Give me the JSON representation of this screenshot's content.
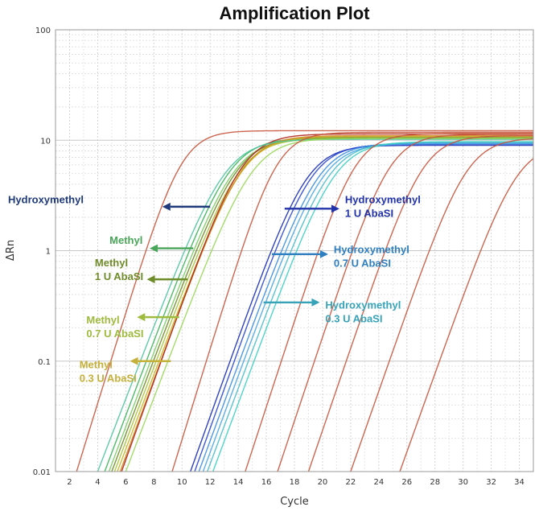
{
  "chart_data": {
    "type": "line",
    "title": "Amplification Plot",
    "xlabel": "Cycle",
    "ylabel": "ΔRn",
    "xlim": [
      1,
      35
    ],
    "ylim": [
      0.01,
      100
    ],
    "yscale": "log",
    "grid": true,
    "x_ticks": [
      2,
      4,
      6,
      8,
      10,
      12,
      14,
      16,
      18,
      20,
      22,
      24,
      26,
      28,
      30,
      32,
      34
    ],
    "y_ticks": [
      {
        "value": 0.01,
        "label": "0.01"
      },
      {
        "value": 0.1,
        "label": "0.1"
      },
      {
        "value": 1,
        "label": "1"
      },
      {
        "value": 10,
        "label": "10"
      },
      {
        "value": 100,
        "label": "100"
      }
    ],
    "series": [
      {
        "name": "Hydroxymethyl",
        "color": "#c8553d",
        "plateau": 12.2,
        "slope": 0.95,
        "x_at_0_01": 2.5
      },
      {
        "name": "Methyl",
        "color": "#3cb55a",
        "plateau": 10.5,
        "slope": 0.78,
        "x_at_0_01": 4.5
      },
      {
        "name": "Methyl",
        "color": "#7ccd66",
        "plateau": 10.3,
        "slope": 0.78,
        "x_at_0_01": 4.8
      },
      {
        "name": "Methyl 1 U AbaSI",
        "color": "#6f8c2a",
        "plateau": 10.6,
        "slope": 0.78,
        "x_at_0_01": 5.0
      },
      {
        "name": "Methyl 0.7 U AbaSI",
        "color": "#a6c43a",
        "plateau": 10.4,
        "slope": 0.78,
        "x_at_0_01": 5.2
      },
      {
        "name": "Methyl 0.3 U AbaSI",
        "color": "#c9b628",
        "plateau": 10.8,
        "slope": 0.78,
        "x_at_0_01": 5.4
      },
      {
        "name": "Methyl 0.3 U AbaSI",
        "color": "#d08a1e",
        "plateau": 11.0,
        "slope": 0.8,
        "x_at_0_01": 5.6
      },
      {
        "name": "Methyl",
        "color": "#b02418",
        "plateau": 11.4,
        "slope": 0.82,
        "x_at_0_01": 5.7
      },
      {
        "name": "Methyl",
        "color": "#4fc4a0",
        "plateau": 10.2,
        "slope": 0.76,
        "x_at_0_01": 4.0
      },
      {
        "name": "Methyl",
        "color": "#9ad85a",
        "plateau": 10.4,
        "slope": 0.77,
        "x_at_0_01": 6.0
      },
      {
        "name": "Hydroxymethyl",
        "color": "#c8553d",
        "plateau": 11.8,
        "slope": 0.95,
        "x_at_0_01": 9.3
      },
      {
        "name": "Hydroxymethyl 1 U AbaSI",
        "color": "#1a2fb8",
        "plateau": 9.0,
        "slope": 0.82,
        "x_at_0_01": 10.6
      },
      {
        "name": "Hydroxymethyl 1 U AbaSI",
        "color": "#2a48d0",
        "plateau": 9.2,
        "slope": 0.82,
        "x_at_0_01": 10.9
      },
      {
        "name": "Hydroxymethyl 0.7 U AbaSI",
        "color": "#3a8ee0",
        "plateau": 9.4,
        "slope": 0.8,
        "x_at_0_01": 11.2
      },
      {
        "name": "Hydroxymethyl 0.7 U AbaSI",
        "color": "#4aa6e4",
        "plateau": 9.3,
        "slope": 0.8,
        "x_at_0_01": 11.5
      },
      {
        "name": "Hydroxymethyl 0.3 U AbaSI",
        "color": "#48bcc8",
        "plateau": 9.6,
        "slope": 0.79,
        "x_at_0_01": 11.8
      },
      {
        "name": "Hydroxymethyl 0.3 U AbaSI",
        "color": "#3ccfc2",
        "plateau": 9.7,
        "slope": 0.79,
        "x_at_0_01": 12.2
      },
      {
        "name": "Hydroxymethyl",
        "color": "#c8553d",
        "plateau": 11.5,
        "slope": 0.9,
        "x_at_0_01": 14.5
      },
      {
        "name": "Hydroxymethyl",
        "color": "#c8553d",
        "plateau": 11.3,
        "slope": 0.88,
        "x_at_0_01": 16.8
      },
      {
        "name": "Hydroxymethyl",
        "color": "#c8553d",
        "plateau": 11.0,
        "slope": 0.86,
        "x_at_0_01": 19.0
      },
      {
        "name": "Hydroxymethyl",
        "color": "#c8553d",
        "plateau": 10.5,
        "slope": 0.84,
        "x_at_0_01": 22.0
      },
      {
        "name": "Hydroxymethyl",
        "color": "#c8553d",
        "plateau": 9.5,
        "slope": 0.82,
        "x_at_0_01": 25.5
      }
    ],
    "annotations": [
      {
        "name": "hydroxymethyl-annotation",
        "lines": [
          "Hydroxymethyl"
        ],
        "color": "#1f3a7a",
        "align": "end",
        "text_anchor": [
          3,
          2.7
        ],
        "arrow": {
          "x1": 12.0,
          "y1": 2.5,
          "x2": 8.6,
          "y2": 2.5
        }
      },
      {
        "name": "methyl-annotation",
        "lines": [
          "Methyl"
        ],
        "color": "#49a559",
        "align": "end",
        "text_anchor": [
          7.2,
          1.15
        ],
        "arrow": {
          "x1": 10.8,
          "y1": 1.05,
          "x2": 7.7,
          "y2": 1.05
        }
      },
      {
        "name": "methyl-1u-abasi-annotation",
        "lines": [
          "Methyl",
          "1 U AbaSI"
        ],
        "color": "#6f8c2a",
        "align": "start",
        "text_anchor": [
          3.8,
          0.72
        ],
        "arrow": {
          "x1": 10.4,
          "y1": 0.55,
          "x2": 7.5,
          "y2": 0.55
        }
      },
      {
        "name": "methyl-07u-abasi-annotation",
        "lines": [
          "Methyl",
          "0.7 U AbaSI"
        ],
        "color": "#9ebb3f",
        "align": "start",
        "text_anchor": [
          3.2,
          0.22
        ],
        "arrow": {
          "x1": 9.8,
          "y1": 0.25,
          "x2": 6.8,
          "y2": 0.25
        }
      },
      {
        "name": "methyl-03u-abasi-annotation",
        "lines": [
          "Methyl",
          "0.3 U AbaSI"
        ],
        "color": "#c4b03a",
        "align": "start",
        "text_anchor": [
          2.7,
          0.086
        ],
        "arrow": {
          "x1": 9.2,
          "y1": 0.1,
          "x2": 6.3,
          "y2": 0.1
        }
      },
      {
        "name": "hydroxymethyl-1u-abasi-annotation",
        "lines": [
          "Hydroxymethyl",
          "1 U AbaSI"
        ],
        "color": "#2233aa",
        "align": "start",
        "text_anchor": [
          21.6,
          2.7
        ],
        "arrow": {
          "x1": 17.3,
          "y1": 2.4,
          "x2": 21.2,
          "y2": 2.4
        }
      },
      {
        "name": "hydroxymethyl-07u-abasi-annotation",
        "lines": [
          "Hydroxymethyl",
          "0.7 U AbaSI"
        ],
        "color": "#2f7fc0",
        "align": "start",
        "text_anchor": [
          20.8,
          0.95
        ],
        "arrow": {
          "x1": 16.4,
          "y1": 0.93,
          "x2": 20.4,
          "y2": 0.93
        }
      },
      {
        "name": "hydroxymethyl-03u-abasi-annotation",
        "lines": [
          "Hydroxymethyl",
          "0.3 U AbaSI"
        ],
        "color": "#36a3b8",
        "align": "start",
        "text_anchor": [
          20.2,
          0.3
        ],
        "arrow": {
          "x1": 15.8,
          "y1": 0.34,
          "x2": 19.8,
          "y2": 0.34
        }
      }
    ]
  }
}
